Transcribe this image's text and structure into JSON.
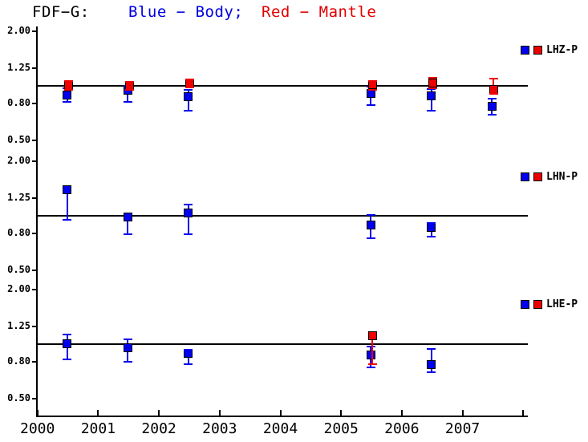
{
  "title": {
    "parts": [
      {
        "text": "FDF−G:",
        "color": "#000000"
      },
      {
        "text": "Blue − Body;",
        "color": "#0000e0"
      },
      {
        "text": "Red − Mantle",
        "color": "#e00000"
      }
    ]
  },
  "chart_data": {
    "type": "scatter",
    "scale": "log",
    "grid": "off",
    "legend_position": "right-of-each-panel",
    "x_tick_labels": [
      "2000",
      "2001",
      "2002",
      "2003",
      "2004",
      "2005",
      "2006",
      "2007"
    ],
    "x_range": [
      2000,
      2008.1
    ],
    "y_tick_labels": [
      "2.00",
      "1.25",
      "0.80",
      "0.50"
    ],
    "y_tick_values": [
      2.0,
      1.25,
      0.8,
      0.5
    ],
    "y_range": [
      0.5,
      2.0
    ],
    "reference_value": 1.0,
    "colors": {
      "body": "#0000ee",
      "mantle": "#ee0000"
    },
    "panels": [
      {
        "label": "LHZ-P",
        "series": [
          {
            "name": "body",
            "color_key": "body",
            "points": [
              {
                "x": 2000.5,
                "v": 0.89,
                "lo": 0.81,
                "hi": 0.97
              },
              {
                "x": 2001.5,
                "v": 0.94,
                "lo": 0.81,
                "hi": 1.0
              },
              {
                "x": 2002.5,
                "v": 0.87,
                "lo": 0.73,
                "hi": 0.95
              },
              {
                "x": 2005.5,
                "v": 0.91,
                "lo": 0.78,
                "hi": 0.99
              },
              {
                "x": 2006.5,
                "v": 0.88,
                "lo": 0.73,
                "hi": 0.96
              },
              {
                "x": 2007.5,
                "v": 0.77,
                "lo": 0.69,
                "hi": 0.85
              }
            ]
          },
          {
            "name": "mantle",
            "color_key": "mantle",
            "points": [
              {
                "x": 2000.5,
                "v": 1.0,
                "lo": 0.95,
                "hi": 1.06
              },
              {
                "x": 2001.5,
                "v": 1.0,
                "lo": 0.95,
                "hi": 1.05
              },
              {
                "x": 2002.5,
                "v": 1.03,
                "lo": 0.98,
                "hi": 1.08
              },
              {
                "x": 2005.5,
                "v": 1.01,
                "lo": 0.95,
                "hi": 1.06
              },
              {
                "x": 2006.5,
                "v": 1.03,
                "lo": 0.97,
                "hi": 1.11
              },
              {
                "x": 2007.5,
                "v": 0.95,
                "lo": 0.9,
                "hi": 1.09
              }
            ]
          }
        ]
      },
      {
        "label": "LHN-P",
        "series": [
          {
            "name": "body",
            "color_key": "body",
            "points": [
              {
                "x": 2000.5,
                "v": 1.39,
                "lo": 0.95,
                "hi": 1.39
              },
              {
                "x": 2001.5,
                "v": 0.98,
                "lo": 0.79,
                "hi": 0.98
              },
              {
                "x": 2002.5,
                "v": 1.04,
                "lo": 0.79,
                "hi": 1.15
              },
              {
                "x": 2005.5,
                "v": 0.89,
                "lo": 0.75,
                "hi": 1.01
              },
              {
                "x": 2006.5,
                "v": 0.86,
                "lo": 0.77,
                "hi": 0.91
              }
            ]
          }
        ]
      },
      {
        "label": "LHE-P",
        "series": [
          {
            "name": "body",
            "color_key": "body",
            "points": [
              {
                "x": 2000.5,
                "v": 1.01,
                "lo": 0.83,
                "hi": 1.13
              },
              {
                "x": 2001.5,
                "v": 0.96,
                "lo": 0.8,
                "hi": 1.07
              },
              {
                "x": 2002.5,
                "v": 0.89,
                "lo": 0.78,
                "hi": 0.93
              },
              {
                "x": 2005.5,
                "v": 0.87,
                "lo": 0.75,
                "hi": 0.97
              },
              {
                "x": 2006.5,
                "v": 0.77,
                "lo": 0.7,
                "hi": 0.94
              }
            ]
          },
          {
            "name": "mantle",
            "color_key": "mantle",
            "points": [
              {
                "x": 2005.5,
                "v": 1.12,
                "lo": 0.78,
                "hi": 1.12
              }
            ]
          }
        ]
      }
    ]
  }
}
